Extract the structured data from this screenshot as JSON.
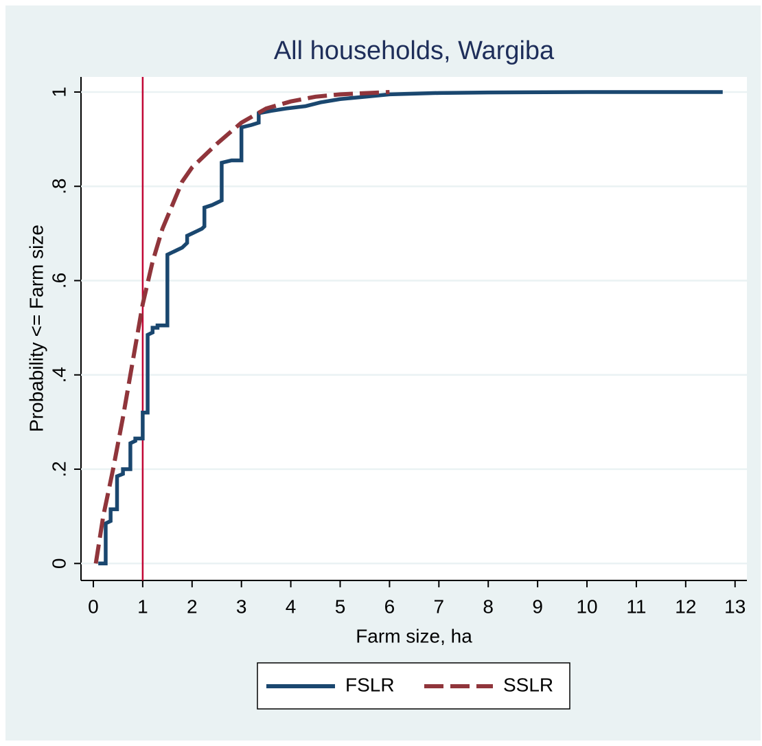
{
  "chart_data": {
    "type": "line",
    "title": "All households, Wargiba",
    "xlabel": "Farm size, ha",
    "ylabel": "Probability <= Farm size",
    "xlim": [
      -0.25,
      13.24
    ],
    "ylim": [
      -0.036,
      1.032
    ],
    "xticks": [
      0,
      1,
      2,
      3,
      4,
      5,
      6,
      7,
      8,
      9,
      10,
      11,
      12,
      13
    ],
    "yticks": [
      0,
      {
        "value": 0.2,
        "label": ".2"
      },
      {
        "value": 0.4,
        "label": ".4"
      },
      {
        "value": 0.6,
        "label": ".6"
      },
      {
        "value": 0.8,
        "label": ".8"
      },
      1
    ],
    "grid": true,
    "xline": 1,
    "xline_color": "#c10534",
    "legend": "bottom",
    "series": [
      {
        "name": "FSLR",
        "color": "#1a476f",
        "style": "solid",
        "x": [
          0.1,
          0.25,
          0.25,
          0.35,
          0.35,
          0.48,
          0.48,
          0.6,
          0.6,
          0.75,
          0.75,
          0.85,
          0.85,
          1,
          1,
          1.1,
          1.1,
          1.2,
          1.2,
          1.3,
          1.3,
          1.5,
          1.5,
          1.6,
          1.7,
          1.8,
          1.9,
          1.9,
          2,
          2.1,
          2.2,
          2.25,
          2.25,
          2.4,
          2.5,
          2.6,
          2.6,
          2.8,
          3,
          3,
          3.2,
          3.35,
          3.35,
          3.6,
          3.9,
          4.3,
          4.6,
          5,
          5.5,
          6,
          7,
          8,
          10,
          12.75
        ],
        "values": [
          0,
          0,
          0.085,
          0.09,
          0.115,
          0.115,
          0.185,
          0.19,
          0.2,
          0.2,
          0.255,
          0.26,
          0.265,
          0.265,
          0.32,
          0.32,
          0.485,
          0.49,
          0.5,
          0.5,
          0.505,
          0.505,
          0.655,
          0.66,
          0.665,
          0.67,
          0.68,
          0.695,
          0.7,
          0.705,
          0.71,
          0.715,
          0.755,
          0.76,
          0.765,
          0.77,
          0.85,
          0.855,
          0.855,
          0.925,
          0.93,
          0.935,
          0.955,
          0.96,
          0.965,
          0.97,
          0.978,
          0.985,
          0.99,
          0.995,
          0.998,
          0.999,
          1,
          1
        ]
      },
      {
        "name": "SSLR",
        "color": "#90353b",
        "style": "dashed",
        "x": [
          0.05,
          0.2,
          0.4,
          0.6,
          0.8,
          1,
          1.2,
          1.4,
          1.6,
          1.8,
          2,
          2.5,
          3,
          3.5,
          4,
          4.5,
          5,
          6
        ],
        "values": [
          0,
          0.1,
          0.2,
          0.31,
          0.43,
          0.55,
          0.64,
          0.71,
          0.76,
          0.81,
          0.84,
          0.89,
          0.935,
          0.965,
          0.98,
          0.99,
          0.995,
          1
        ]
      }
    ]
  }
}
